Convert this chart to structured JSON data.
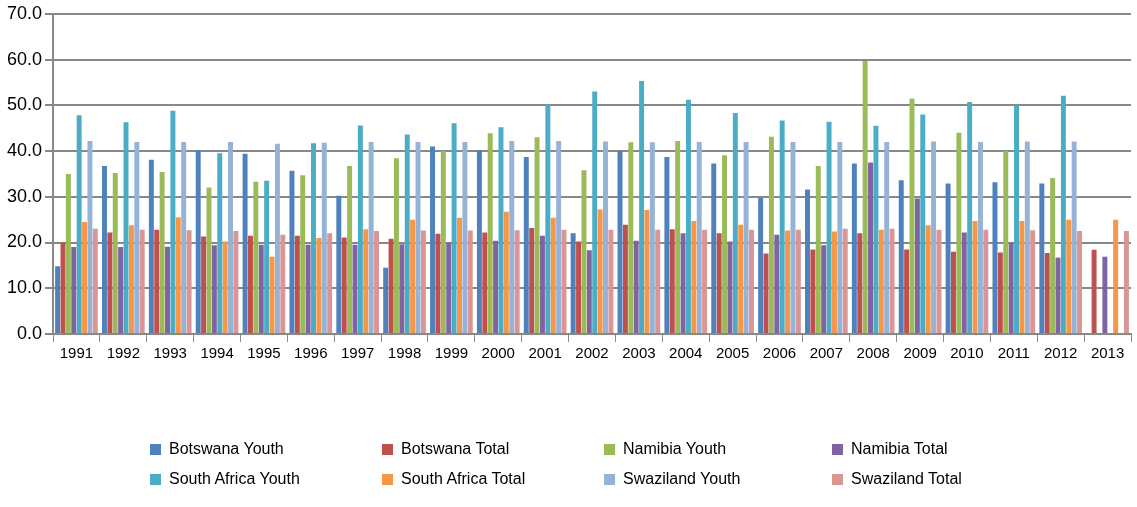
{
  "chart_data": {
    "type": "bar",
    "categories": [
      "1991",
      "1992",
      "1993",
      "1994",
      "1995",
      "1996",
      "1997",
      "1998",
      "1999",
      "2000",
      "2001",
      "2002",
      "2003",
      "2004",
      "2005",
      "2006",
      "2007",
      "2008",
      "2009",
      "2010",
      "2011",
      "2012",
      "2013"
    ],
    "series": [
      {
        "name": "Botswana Youth",
        "color": "#4f81bd",
        "values": [
          14.8,
          36.7,
          38.1,
          40.2,
          39.4,
          35.7,
          30.2,
          14.5,
          41.0,
          40.2,
          38.7,
          22.0,
          40.0,
          38.7,
          37.3,
          29.8,
          31.6,
          37.3,
          33.6,
          32.9,
          33.2,
          32.9,
          null
        ]
      },
      {
        "name": "Botswana Total",
        "color": "#c0504d",
        "values": [
          20.0,
          22.2,
          22.8,
          21.3,
          21.5,
          21.5,
          21.1,
          20.8,
          21.9,
          22.2,
          23.2,
          20.2,
          23.9,
          22.9,
          22.0,
          17.6,
          18.5,
          22.0,
          18.5,
          18.0,
          17.8,
          17.7,
          18.4
        ]
      },
      {
        "name": "Namibia Youth",
        "color": "#9bbb59",
        "values": [
          35.0,
          35.2,
          35.4,
          32.0,
          33.3,
          34.7,
          36.7,
          38.4,
          40.0,
          43.9,
          43.0,
          35.8,
          41.9,
          42.2,
          39.1,
          43.1,
          36.7,
          59.7,
          51.5,
          44.0,
          40.0,
          34.1,
          null
        ]
      },
      {
        "name": "Namibia Total",
        "color": "#8064a2",
        "values": [
          19.0,
          19.0,
          19.1,
          19.4,
          19.5,
          19.5,
          19.5,
          19.6,
          20.0,
          20.4,
          21.5,
          18.3,
          20.4,
          22.0,
          20.2,
          21.7,
          19.4,
          37.5,
          29.6,
          22.2,
          20.0,
          16.7,
          16.9
        ]
      },
      {
        "name": "South Africa Youth",
        "color": "#4bacc6",
        "values": [
          47.8,
          46.3,
          48.8,
          39.5,
          33.5,
          41.7,
          45.6,
          43.6,
          46.1,
          45.2,
          50.2,
          53.0,
          55.3,
          51.2,
          48.3,
          46.7,
          46.4,
          45.5,
          48.0,
          50.7,
          50.0,
          52.1,
          null
        ]
      },
      {
        "name": "South Africa Total",
        "color": "#f79646",
        "values": [
          24.5,
          23.8,
          25.5,
          20.2,
          16.9,
          21.0,
          22.9,
          25.0,
          25.4,
          26.7,
          25.4,
          27.2,
          27.1,
          24.7,
          23.9,
          22.6,
          22.4,
          22.8,
          23.8,
          24.7,
          24.7,
          25.0,
          25.0
        ]
      },
      {
        "name": "Swaziland Youth",
        "color": "#95b3d7",
        "values": [
          42.2,
          42.0,
          42.0,
          42.0,
          41.6,
          41.8,
          42.0,
          42.0,
          42.0,
          42.2,
          42.2,
          42.1,
          41.9,
          42.0,
          42.0,
          42.0,
          42.0,
          42.0,
          42.1,
          42.0,
          42.1,
          42.1,
          null
        ]
      },
      {
        "name": "Swaziland Total",
        "color": "#d99694",
        "values": [
          23.0,
          22.8,
          22.7,
          22.5,
          21.7,
          22.0,
          22.5,
          22.6,
          22.6,
          22.7,
          22.8,
          22.8,
          22.8,
          22.8,
          22.8,
          22.8,
          23.0,
          23.0,
          22.8,
          22.8,
          22.7,
          22.5,
          22.5
        ]
      }
    ],
    "ylim": [
      0,
      70
    ],
    "yticks": [
      {
        "value": 0,
        "label": "0.0"
      },
      {
        "value": 10,
        "label": "10.0"
      },
      {
        "value": 20,
        "label": "20.0"
      },
      {
        "value": 30,
        "label": "30.0"
      },
      {
        "value": 40,
        "label": "40.0"
      },
      {
        "value": 50,
        "label": "50.0"
      },
      {
        "value": 60,
        "label": "60.0"
      },
      {
        "value": 70,
        "label": "70.0"
      }
    ],
    "grid": "y",
    "legend": "bottom"
  }
}
